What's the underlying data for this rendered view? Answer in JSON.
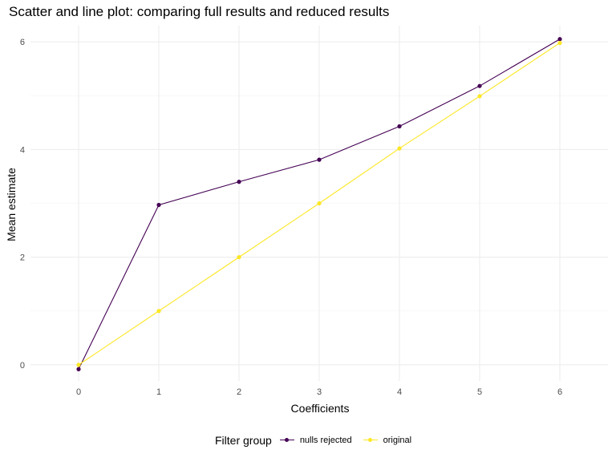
{
  "chart_data": {
    "type": "line",
    "title": "Scatter and line plot: comparing full results and reduced results",
    "xlabel": "Coefficients",
    "ylabel": "Mean estimate",
    "x": [
      0,
      1,
      2,
      3,
      4,
      5,
      6
    ],
    "x_ticks": [
      "0",
      "1",
      "2",
      "3",
      "4",
      "5",
      "6"
    ],
    "y_ticks": [
      "0",
      "2",
      "4",
      "6"
    ],
    "xlim": [
      -0.6,
      6.6
    ],
    "ylim": [
      -0.3,
      6.3
    ],
    "grid": true,
    "markers": true,
    "legend_title": "Filter group",
    "legend_position": "bottom",
    "series": [
      {
        "name": "nulls rejected",
        "color": "#440154",
        "values": [
          -0.08,
          2.97,
          3.4,
          3.81,
          4.43,
          5.18,
          6.05
        ]
      },
      {
        "name": "original",
        "color": "#FDE725",
        "values": [
          0.0,
          1.0,
          2.0,
          3.0,
          4.02,
          4.99,
          5.98
        ]
      }
    ]
  }
}
